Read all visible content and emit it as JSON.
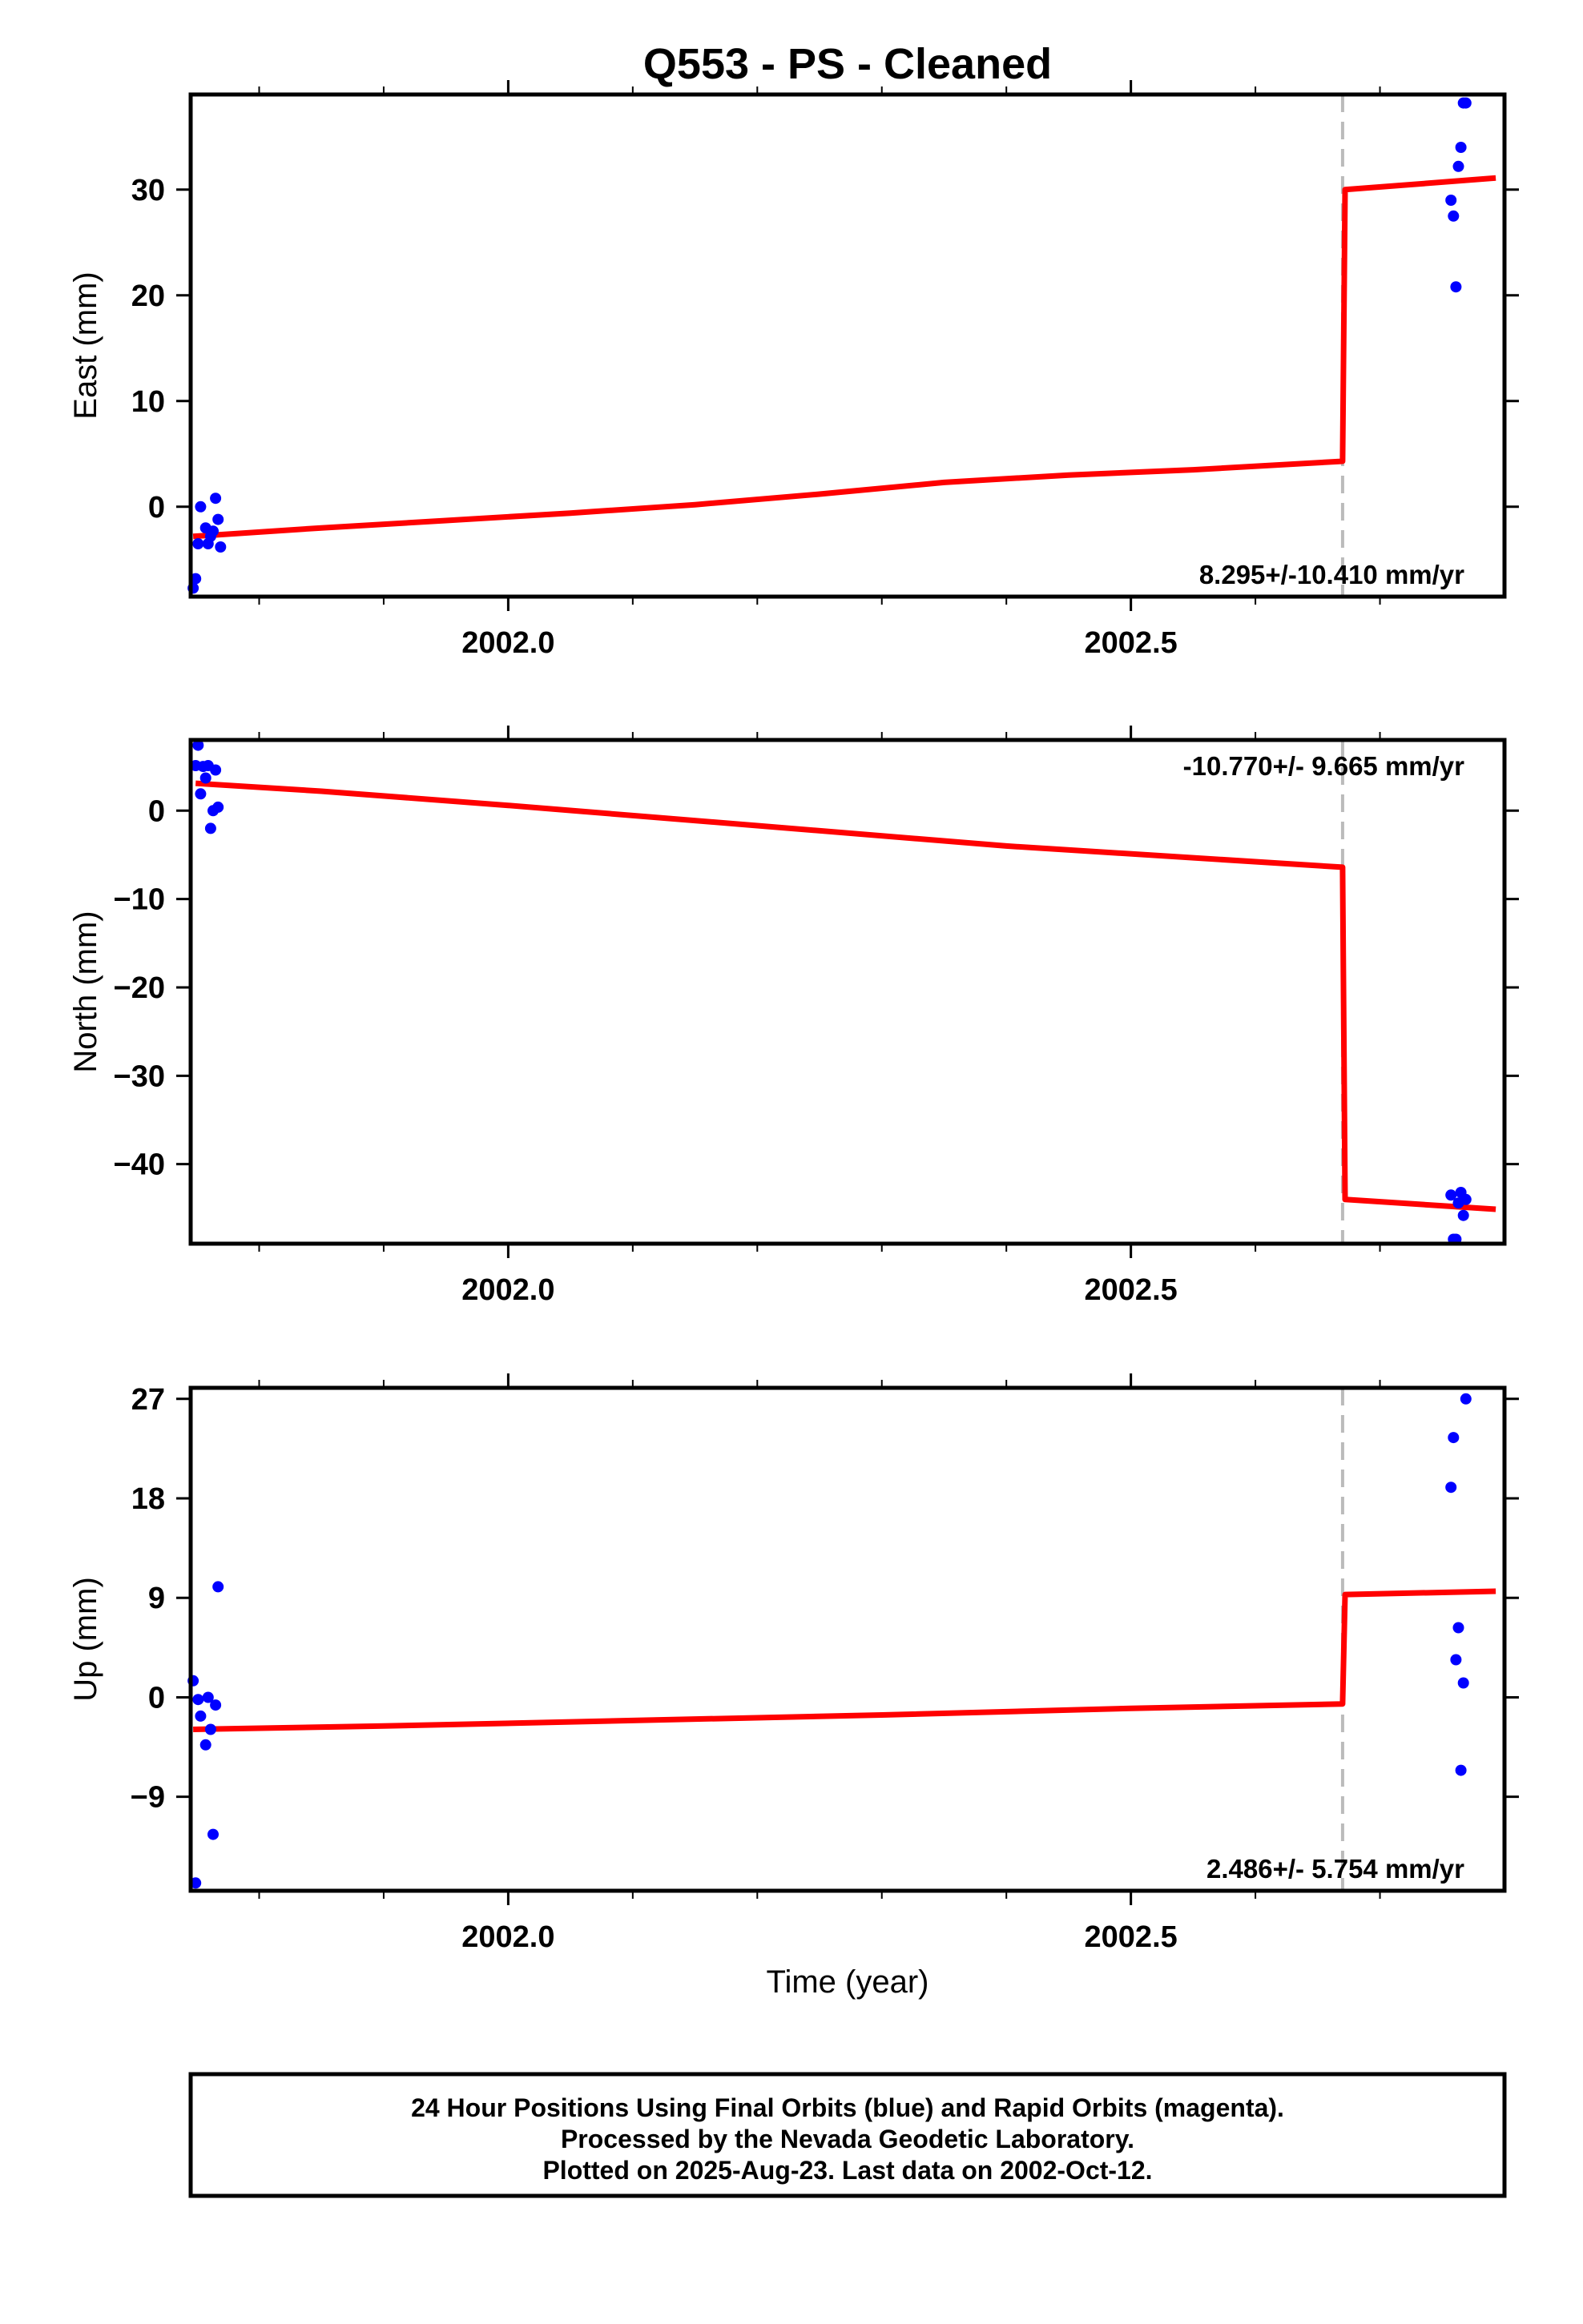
{
  "title": "Q553  - PS - Cleaned",
  "xlabel": "Time (year)",
  "footer": {
    "line1": "24 Hour Positions Using Final Orbits (blue) and Rapid Orbits (magenta).",
    "line2": "Processed by the Nevada Geodetic Laboratory.",
    "line3": "Plotted on 2025-Aug-23. Last data on 2002-Oct-12."
  },
  "colors": {
    "data": "#0000ff",
    "fit": "#ff0000",
    "break": "#bbbbbb",
    "frame": "#000000"
  },
  "chart_data": [
    {
      "type": "scatter",
      "panel": "east",
      "ylabel": "East (mm)",
      "xlim": [
        2001.745,
        2002.8
      ],
      "ylim": [
        -8.5,
        39
      ],
      "x_ticks": [
        2002.0,
        2002.5
      ],
      "x_tick_labels": [
        "2002.0",
        "2002.5"
      ],
      "x_minor_ticks": [
        2001.8,
        2001.9,
        2002.1,
        2002.2,
        2002.3,
        2002.4,
        2002.6,
        2002.7
      ],
      "y_ticks": [
        0,
        10,
        20,
        30
      ],
      "y_tick_labels": [
        "0",
        "10",
        "20",
        "30"
      ],
      "rate_label": "8.295+/-10.410 mm/yr",
      "rate_position": "bottom-right",
      "break_x": 2002.67,
      "points": [
        [
          2001.747,
          -7.7
        ],
        [
          2001.749,
          -6.8
        ],
        [
          2001.751,
          -3.5
        ],
        [
          2001.753,
          0.0
        ],
        [
          2001.757,
          -2.0
        ],
        [
          2001.759,
          -3.5
        ],
        [
          2001.761,
          -2.8
        ],
        [
          2001.763,
          -2.3
        ],
        [
          2001.765,
          0.8
        ],
        [
          2001.767,
          -1.2
        ],
        [
          2001.769,
          -3.8
        ],
        [
          2002.757,
          29.0
        ],
        [
          2002.759,
          27.5
        ],
        [
          2002.761,
          20.8
        ],
        [
          2002.763,
          32.2
        ],
        [
          2002.765,
          34.0
        ],
        [
          2002.767,
          38.2
        ],
        [
          2002.769,
          38.2
        ]
      ],
      "fit": [
        [
          2001.747,
          -2.8
        ],
        [
          2001.85,
          -2.0
        ],
        [
          2001.95,
          -1.3
        ],
        [
          2002.05,
          -0.6
        ],
        [
          2002.15,
          0.2
        ],
        [
          2002.25,
          1.2
        ],
        [
          2002.35,
          2.3
        ],
        [
          2002.45,
          3.0
        ],
        [
          2002.55,
          3.5
        ],
        [
          2002.67,
          4.3
        ],
        [
          2002.672,
          30.0
        ],
        [
          2002.793,
          31.1
        ]
      ]
    },
    {
      "type": "scatter",
      "panel": "north",
      "ylabel": "North (mm)",
      "xlim": [
        2001.745,
        2002.8
      ],
      "ylim": [
        -49,
        8
      ],
      "x_ticks": [
        2002.0,
        2002.5
      ],
      "x_tick_labels": [
        "2002.0",
        "2002.5"
      ],
      "x_minor_ticks": [
        2001.8,
        2001.9,
        2002.1,
        2002.2,
        2002.3,
        2002.4,
        2002.6,
        2002.7
      ],
      "y_ticks": [
        -40,
        -30,
        -20,
        -10,
        0
      ],
      "y_tick_labels": [
        "−40",
        "−30",
        "−20",
        "−10",
        "0"
      ],
      "rate_label": "-10.770+/- 9.665 mm/yr",
      "rate_position": "top-right",
      "break_x": 2002.67,
      "points": [
        [
          2001.749,
          5.1
        ],
        [
          2001.751,
          7.4
        ],
        [
          2001.753,
          1.9
        ],
        [
          2001.755,
          5.0
        ],
        [
          2001.757,
          3.7
        ],
        [
          2001.759,
          5.1
        ],
        [
          2001.761,
          -2.0
        ],
        [
          2001.763,
          0.0
        ],
        [
          2001.765,
          4.6
        ],
        [
          2001.767,
          0.4
        ],
        [
          2002.757,
          -43.5
        ],
        [
          2002.759,
          -48.5
        ],
        [
          2002.761,
          -48.5
        ],
        [
          2002.763,
          -44.4
        ],
        [
          2002.765,
          -43.2
        ],
        [
          2002.767,
          -45.8
        ],
        [
          2002.769,
          -44.0
        ]
      ],
      "fit": [
        [
          2001.749,
          3.1
        ],
        [
          2001.85,
          2.2
        ],
        [
          2002.0,
          0.6
        ],
        [
          2002.2,
          -1.7
        ],
        [
          2002.4,
          -4.0
        ],
        [
          2002.67,
          -6.4
        ],
        [
          2002.672,
          -44.0
        ],
        [
          2002.793,
          -45.1
        ]
      ]
    },
    {
      "type": "scatter",
      "panel": "up",
      "ylabel": "Up (mm)",
      "xlim": [
        2001.745,
        2002.8
      ],
      "ylim": [
        -17.5,
        28
      ],
      "x_ticks": [
        2002.0,
        2002.5
      ],
      "x_tick_labels": [
        "2002.0",
        "2002.5"
      ],
      "x_minor_ticks": [
        2001.8,
        2001.9,
        2002.1,
        2002.2,
        2002.3,
        2002.4,
        2002.6,
        2002.7
      ],
      "y_ticks": [
        -9,
        0,
        9,
        18,
        27
      ],
      "y_tick_labels": [
        "−9",
        "0",
        "9",
        "18",
        "27"
      ],
      "rate_label": "2.486+/- 5.754 mm/yr",
      "rate_position": "bottom-right",
      "x_axis_title": true,
      "break_x": 2002.67,
      "points": [
        [
          2001.747,
          1.5
        ],
        [
          2001.749,
          -16.8
        ],
        [
          2001.751,
          -0.2
        ],
        [
          2001.753,
          -1.7
        ],
        [
          2001.757,
          -4.3
        ],
        [
          2001.759,
          0.0
        ],
        [
          2001.761,
          -2.9
        ],
        [
          2001.763,
          -12.4
        ],
        [
          2001.765,
          -0.7
        ],
        [
          2001.767,
          10.0
        ],
        [
          2002.757,
          19.0
        ],
        [
          2002.759,
          23.5
        ],
        [
          2002.761,
          3.4
        ],
        [
          2002.763,
          6.3
        ],
        [
          2002.765,
          -6.6
        ],
        [
          2002.767,
          1.3
        ],
        [
          2002.769,
          27.0
        ]
      ],
      "fit": [
        [
          2001.747,
          -2.9
        ],
        [
          2001.9,
          -2.6
        ],
        [
          2002.1,
          -2.1
        ],
        [
          2002.3,
          -1.6
        ],
        [
          2002.5,
          -1.0
        ],
        [
          2002.67,
          -0.6
        ],
        [
          2002.672,
          9.3
        ],
        [
          2002.793,
          9.6
        ]
      ]
    }
  ]
}
